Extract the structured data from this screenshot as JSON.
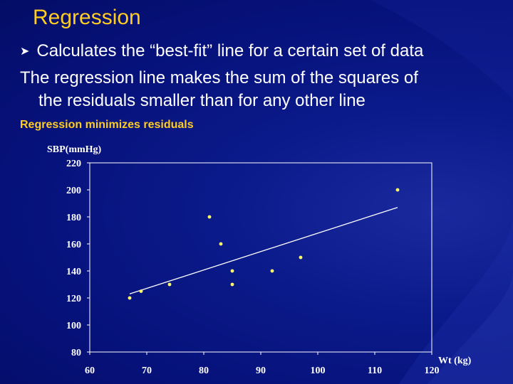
{
  "slide": {
    "title": "Regression",
    "bullet": "Calculates the “best-fit” line for a certain set of data",
    "body_line1": "The regression line makes the sum of the squares of",
    "body_line2": "the residuals smaller than for any other line",
    "caption": "Regression minimizes residuals"
  },
  "colors": {
    "title": "#ffcc22",
    "text": "#ffffff",
    "points": "#ffff66",
    "line": "#ffffff"
  },
  "chart_data": {
    "type": "scatter",
    "ylabel": "SBP(mmHg)",
    "xlabel": "Wt (kg)",
    "xlim": [
      60,
      120
    ],
    "ylim": [
      80,
      220
    ],
    "xticks": [
      60,
      70,
      80,
      90,
      100,
      110,
      120
    ],
    "yticks": [
      80,
      100,
      120,
      140,
      160,
      180,
      200,
      220
    ],
    "grid": false,
    "points": [
      {
        "x": 67,
        "y": 120
      },
      {
        "x": 69,
        "y": 125
      },
      {
        "x": 74,
        "y": 130
      },
      {
        "x": 81,
        "y": 180
      },
      {
        "x": 83,
        "y": 160
      },
      {
        "x": 85,
        "y": 140
      },
      {
        "x": 85,
        "y": 130
      },
      {
        "x": 92,
        "y": 140
      },
      {
        "x": 97,
        "y": 150
      },
      {
        "x": 114,
        "y": 200
      }
    ],
    "regression_line": {
      "x": [
        67,
        114
      ],
      "y": [
        123,
        187
      ]
    }
  }
}
